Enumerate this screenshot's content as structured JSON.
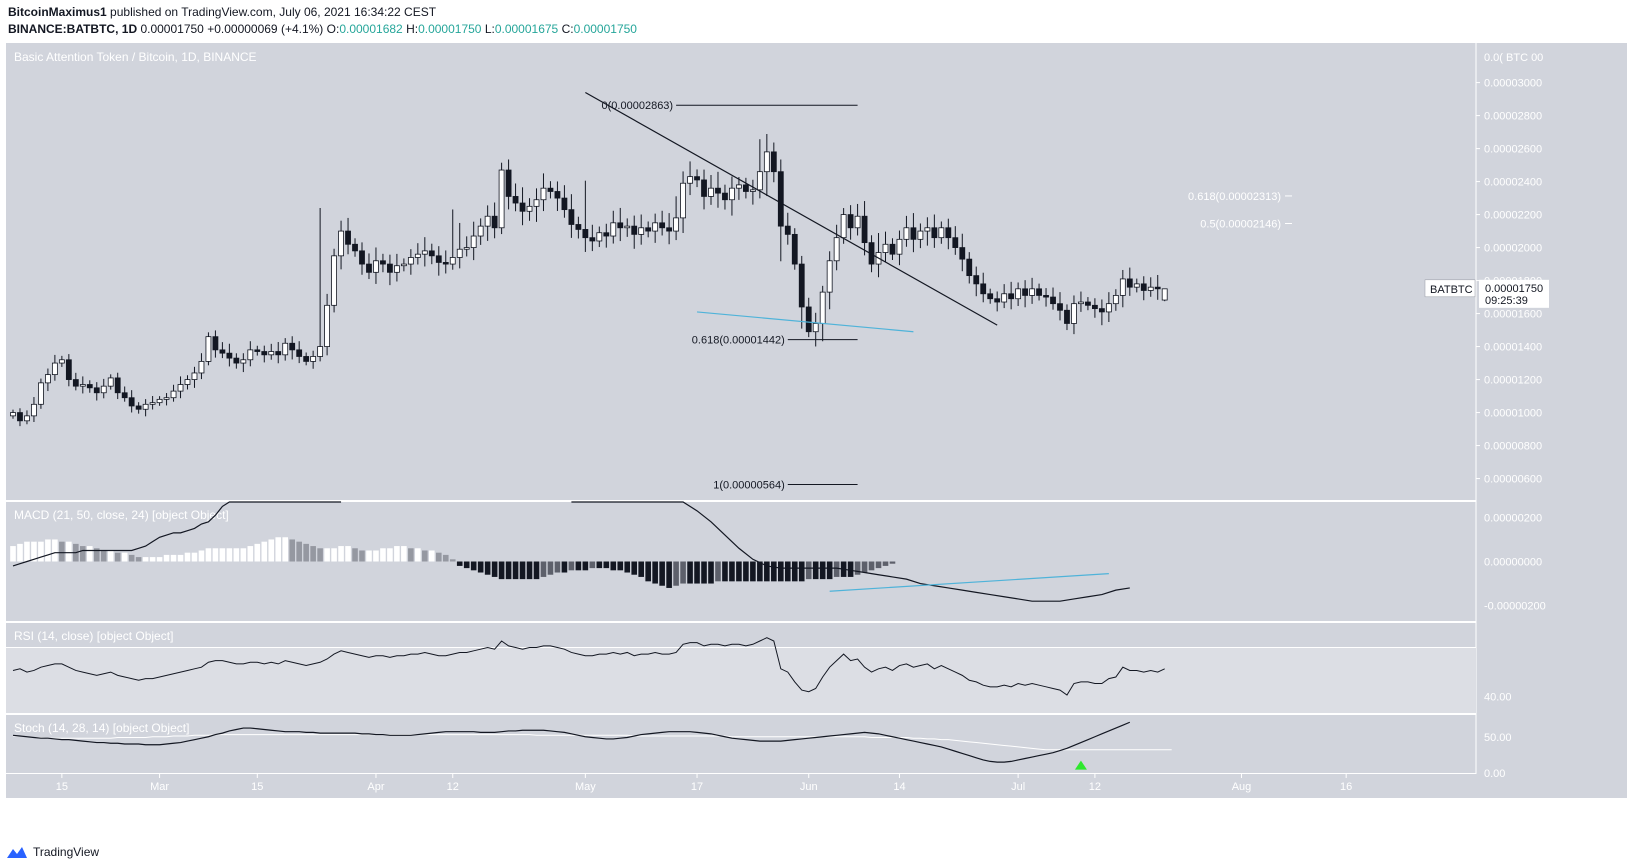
{
  "header": {
    "author": "BitcoinMaximus1",
    "published": "published on TradingView.com, July 06, 2021 16:34:22 CEST",
    "symbol": "BINANCE:BATBTC, 1D",
    "last": "0.00001750",
    "change": "+0.00000069 (+4.1%)",
    "o_label": "O:",
    "o": "0.00001682",
    "h_label": "H:",
    "h": "0.00001750",
    "l_label": "L:",
    "l": "0.00001675",
    "c_label": "C:",
    "c": "0.00001750"
  },
  "footer": {
    "brand": "TradingView"
  },
  "colors": {
    "pane_bg": "#d1d4dc",
    "rsi_band": "#dcdee4",
    "candle_up": "#ffffff",
    "candle_down": "#131722",
    "trendline": "#131722",
    "support_line": "#4fb3d9",
    "stoch_signal": "#ffffff",
    "signal_arrow": "#2ee82e",
    "accent_up": "#26a69a"
  },
  "chart_data": [
    {
      "type": "candlestick",
      "pane": "price",
      "title": "Basic Attention Token / Bitcoin, 1D, BINANCE",
      "ylabel": "BTC",
      "ylim": [
        4.7e-06,
        3.24e-05
      ],
      "y_ticks": [
        "0.00000600",
        "0.00000800",
        "0.00001000",
        "0.00001200",
        "0.00001400",
        "0.00001600",
        "0.00001800",
        "0.00002000",
        "0.00002200",
        "0.00002400",
        "0.00002600",
        "0.00002800",
        "0.00003000"
      ],
      "y_top_label": "0.0( BTC 00",
      "x_ticks": [
        {
          "label": "15",
          "i": 7
        },
        {
          "label": "Mar",
          "i": 21
        },
        {
          "label": "15",
          "i": 35
        },
        {
          "label": "Apr",
          "i": 52
        },
        {
          "label": "12",
          "i": 63
        },
        {
          "label": "May",
          "i": 82
        },
        {
          "label": "17",
          "i": 98
        },
        {
          "label": "Jun",
          "i": 114
        },
        {
          "label": "14",
          "i": 127
        },
        {
          "label": "Jul",
          "i": 144
        },
        {
          "label": "12",
          "i": 155
        },
        {
          "label": "Aug",
          "i": 176
        },
        {
          "label": "16",
          "i": 191
        }
      ],
      "close": [
        10.0,
        9.5,
        9.8,
        10.5,
        11.8,
        12.3,
        13.0,
        13.2,
        12.0,
        11.6,
        11.7,
        11.5,
        11.2,
        11.6,
        12.1,
        11.2,
        10.9,
        10.4,
        10.2,
        10.5,
        10.6,
        10.8,
        10.9,
        11.3,
        11.7,
        12.0,
        12.4,
        13.1,
        14.6,
        13.8,
        13.6,
        13.3,
        13.0,
        13.2,
        13.8,
        13.7,
        13.5,
        13.7,
        13.5,
        14.2,
        13.8,
        13.4,
        13.1,
        13.4,
        14.0,
        16.5,
        19.5,
        21.0,
        20.2,
        19.8,
        19.0,
        18.5,
        19.2,
        19.0,
        18.5,
        18.9,
        19.0,
        19.4,
        19.6,
        19.8,
        19.5,
        19.1,
        19.0,
        19.4,
        19.9,
        20.0,
        20.7,
        21.3,
        21.9,
        21.2,
        24.7,
        23.1,
        22.7,
        22.2,
        22.5,
        22.9,
        23.6,
        23.4,
        23.0,
        22.3,
        21.4,
        21.1,
        20.6,
        20.4,
        20.9,
        20.7,
        21.5,
        21.2,
        21.3,
        20.8,
        21.2,
        21.0,
        21.5,
        21.2,
        21.0,
        21.8,
        23.9,
        24.3,
        24.1,
        23.1,
        23.6,
        23.3,
        22.9,
        23.6,
        23.8,
        23.4,
        23.5,
        24.6,
        25.8,
        24.6,
        21.3,
        20.8,
        19.0,
        16.4,
        14.9,
        15.4,
        17.3,
        19.2,
        20.6,
        22.0,
        21.2,
        21.9,
        20.3,
        19.0,
        19.7,
        20.2,
        19.6,
        20.5,
        21.2,
        20.5,
        21.0,
        21.2,
        20.6,
        21.2,
        20.6,
        20.0,
        19.3,
        18.3,
        17.8,
        17.2,
        16.9,
        16.7,
        17.2,
        16.9,
        17.5,
        17.1,
        17.5,
        17.1,
        17.0,
        16.6,
        16.2,
        15.4,
        16.6,
        16.7,
        16.5,
        16.3,
        16.1,
        16.6,
        17.1,
        18.1,
        17.6,
        17.8,
        17.4,
        17.6,
        17.5,
        17.5
      ],
      "close_scale": "1e-6 BTC",
      "last_candle": {
        "open": 1.682e-05,
        "high": 1.75e-05,
        "low": 1.675e-05,
        "close": 1.75e-05
      },
      "price_label": {
        "symbol": "BATBTC",
        "value": "0.00001750",
        "countdown": "09:25:39"
      },
      "fib_levels": [
        {
          "label": "0(0.00002863)",
          "value": 2.863e-05,
          "from": 95,
          "to": 121
        },
        {
          "label": "0.618(0.00001442)",
          "value": 1.442e-05,
          "from": 111,
          "to": 121
        },
        {
          "label": "1(0.00000564)",
          "value": 5.64e-06,
          "from": 111,
          "to": 121
        }
      ],
      "right_fibs": [
        {
          "label": "0.618(0.00002313)",
          "value": 2.313e-05
        },
        {
          "label": "0.5(0.00002146)",
          "value": 2.146e-05
        }
      ],
      "descending_trendline": [
        {
          "i": 82,
          "v": 2.94e-05
        },
        {
          "i": 141,
          "v": 1.53e-05
        }
      ],
      "support_line": [
        {
          "i": 98,
          "v": 1.61e-05
        },
        {
          "i": 129,
          "v": 1.49e-05
        }
      ]
    },
    {
      "type": "macd",
      "pane": "macd",
      "label": "MACD (21, 50, close, 24) [object Object]",
      "y_ticks": [
        "0.00000200",
        "0.00000000",
        "-0.00000200"
      ],
      "ylim": [
        -2.7e-06,
        2.7e-06
      ],
      "histogram": [
        0.7,
        0.8,
        0.9,
        0.9,
        0.9,
        1.0,
        1.0,
        0.9,
        0.9,
        0.8,
        0.7,
        0.7,
        0.6,
        0.5,
        0.5,
        0.4,
        0.4,
        0.3,
        0.2,
        0.2,
        0.2,
        0.2,
        0.3,
        0.3,
        0.3,
        0.4,
        0.4,
        0.5,
        0.6,
        0.6,
        0.6,
        0.6,
        0.6,
        0.6,
        0.7,
        0.8,
        0.9,
        1.0,
        1.1,
        1.1,
        1.0,
        0.9,
        0.8,
        0.7,
        0.6,
        0.6,
        0.6,
        0.7,
        0.7,
        0.6,
        0.5,
        0.5,
        0.5,
        0.6,
        0.6,
        0.7,
        0.7,
        0.6,
        0.6,
        0.5,
        0.5,
        0.4,
        0.3,
        0.1,
        -0.2,
        -0.3,
        -0.4,
        -0.5,
        -0.6,
        -0.7,
        -0.8,
        -0.8,
        -0.8,
        -0.8,
        -0.8,
        -0.8,
        -0.7,
        -0.6,
        -0.5,
        -0.5,
        -0.4,
        -0.4,
        -0.4,
        -0.3,
        -0.3,
        -0.3,
        -0.4,
        -0.4,
        -0.5,
        -0.6,
        -0.7,
        -0.9,
        -1.0,
        -1.1,
        -1.2,
        -1.1,
        -1.0,
        -1.0,
        -1.0,
        -1.0,
        -1.0,
        -0.9,
        -0.9,
        -0.9,
        -0.9,
        -0.9,
        -0.9,
        -0.9,
        -0.9,
        -0.9,
        -0.9,
        -0.9,
        -0.9,
        -0.9,
        -0.8,
        -0.8,
        -0.8,
        -0.8,
        -0.7,
        -0.7,
        -0.7,
        -0.6,
        -0.5,
        -0.4,
        -0.3,
        -0.2,
        -0.1
      ],
      "macd_line": [
        -0.2,
        -0.1,
        0.0,
        0.1,
        0.2,
        0.3,
        0.4,
        0.4,
        0.4,
        0.4,
        0.5,
        0.5,
        0.5,
        0.5,
        0.5,
        0.5,
        0.5,
        0.5,
        0.6,
        0.7,
        0.9,
        1.1,
        1.2,
        1.3,
        1.3,
        1.4,
        1.5,
        1.7,
        1.8,
        2.1,
        2.5,
        2.9,
        3.2,
        3.5,
        3.8,
        3.9,
        3.9,
        3.9,
        3.9,
        3.9,
        3.9,
        3.9,
        3.8,
        3.8,
        3.9,
        4.0,
        4.3,
        4.8
      ],
      "signal_line": [
        0.2,
        0.3,
        0.4,
        0.5,
        0.6,
        0.7,
        0.8,
        0.9
      ]
    },
    {
      "type": "line",
      "pane": "rsi",
      "label": "RSI (14, close) [object Object]",
      "y_ticks": [
        "40.00"
      ],
      "band": [
        30,
        70
      ],
      "values": [
        56,
        57,
        55,
        56,
        58,
        59,
        60,
        60,
        58,
        56,
        55,
        54,
        53,
        54,
        55,
        53,
        52,
        51,
        50,
        51,
        51,
        52,
        53,
        54,
        55,
        56,
        57,
        58,
        61,
        62,
        62,
        61,
        60,
        60,
        61,
        61,
        60,
        61,
        60,
        62,
        61,
        60,
        59,
        60,
        61,
        63,
        66,
        68,
        67,
        66,
        65,
        64,
        65,
        65,
        64,
        65,
        65,
        66,
        66,
        67,
        66,
        65,
        65,
        66,
        67,
        67,
        68,
        69,
        70,
        69,
        74,
        71,
        70,
        69,
        70,
        70,
        71,
        71,
        70,
        69,
        67,
        66,
        65,
        65,
        66,
        66,
        67,
        66,
        67,
        65,
        66,
        66,
        67,
        66,
        66,
        67,
        72,
        73,
        73,
        71,
        72,
        72,
        71,
        72,
        72,
        71,
        72,
        74,
        76,
        74,
        57,
        55,
        49,
        44,
        43,
        45,
        52,
        58,
        62,
        66,
        62,
        63,
        58,
        55,
        57,
        58,
        56,
        59,
        60,
        58,
        59,
        60,
        57,
        59,
        57,
        55,
        53,
        50,
        49,
        47,
        46,
        46,
        47,
        46,
        48,
        47,
        48,
        47,
        46,
        45,
        44,
        41,
        48,
        49,
        49,
        48,
        48,
        51,
        52,
        58,
        56,
        56,
        55,
        56,
        55,
        57
      ]
    },
    {
      "type": "line",
      "pane": "stoch",
      "label": "Stoch (14, 28, 14) [object Object]",
      "y_ticks": [
        "50.00",
        "0.00"
      ],
      "k_values": [
        52,
        51,
        50,
        49,
        48,
        48,
        47,
        46,
        46,
        45,
        44,
        43,
        42,
        42,
        41,
        41,
        40,
        40,
        40,
        39,
        39,
        39,
        40,
        41,
        42,
        44,
        46,
        48,
        50,
        53,
        55,
        58,
        60,
        62,
        62,
        61,
        60,
        59,
        58,
        57,
        57,
        57,
        56,
        56,
        55,
        55,
        55,
        55,
        55,
        55,
        54,
        54,
        53,
        53,
        52,
        52,
        52,
        52,
        53,
        54,
        55,
        56,
        57,
        57,
        57,
        57,
        57,
        56,
        56,
        56,
        57,
        58,
        58,
        59,
        59,
        59,
        59,
        58,
        57,
        56,
        54,
        52,
        50,
        49,
        48,
        47,
        47,
        48,
        49,
        51,
        53,
        54,
        55,
        56,
        57,
        57,
        57,
        57,
        56,
        55,
        54,
        52,
        50,
        48,
        47,
        46,
        45,
        44,
        44,
        44,
        44,
        45,
        46,
        47,
        48,
        49,
        50,
        51,
        52,
        53,
        54,
        55,
        56,
        55,
        54,
        52,
        50,
        48,
        46,
        44,
        42,
        40,
        38,
        36,
        33,
        30,
        27,
        24,
        21,
        18,
        16,
        15,
        15,
        16,
        18,
        20,
        22,
        24,
        26,
        28,
        31,
        34,
        38,
        42,
        46,
        50,
        54,
        58,
        62,
        66,
        70
      ],
      "d_values": [
        51,
        51,
        50,
        49,
        49,
        48,
        48,
        48,
        48,
        48,
        48,
        48,
        48,
        48,
        48,
        49,
        49,
        49,
        49,
        49,
        50,
        50,
        50,
        51,
        51,
        51,
        52,
        52,
        52,
        53,
        53,
        53,
        53,
        53,
        53,
        53,
        53,
        53,
        53,
        53,
        53,
        53,
        53,
        53,
        53,
        53,
        53,
        53,
        53,
        53,
        53,
        53,
        53,
        53,
        53,
        53,
        53,
        53,
        53,
        53,
        53,
        53,
        53,
        53,
        53,
        53,
        53,
        53,
        53,
        53,
        53,
        53,
        53,
        53,
        53,
        52,
        52,
        52,
        52,
        52,
        52,
        52,
        52,
        52,
        52,
        52,
        52,
        52,
        52,
        51,
        51,
        51,
        51,
        51,
        51,
        51,
        51,
        51,
        51,
        51,
        51,
        51,
        51,
        50,
        50,
        50,
        50,
        50,
        50,
        50,
        50,
        50,
        50,
        50,
        50,
        50,
        50,
        50,
        50,
        50,
        50,
        50,
        50,
        49,
        49,
        49,
        49,
        49,
        49,
        48,
        48,
        47,
        47,
        46,
        46,
        45,
        44,
        43,
        42,
        41,
        40,
        39,
        38,
        37,
        36,
        35,
        34,
        33,
        32,
        32,
        32,
        32,
        32,
        32,
        32,
        32,
        32,
        32,
        32,
        32,
        32,
        32,
        32,
        32,
        32,
        32,
        32
      ]
    }
  ]
}
